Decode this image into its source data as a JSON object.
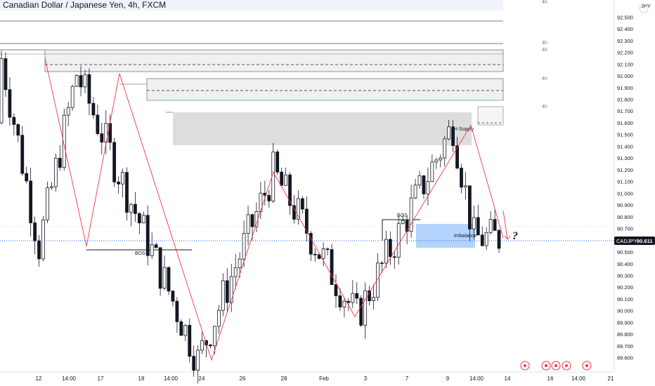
{
  "header": {
    "title": "Canadian Dollar / Japanese Yen, 4h, FXCM",
    "currency": "JPY"
  },
  "price_label": {
    "symbol": "CADJPY",
    "value": "90.611"
  },
  "marker": "?",
  "timeframe_labels": [
    "4h",
    "4h",
    "4h",
    "4h",
    "4h"
  ],
  "colors": {
    "up": "#131722",
    "down": "#131722",
    "zigzag": "#f23645",
    "supply_zone": "#e0e0e0",
    "imbalance": "#b3d4fc",
    "price_line": "#2962ff"
  },
  "annotations": {
    "supply": "4H Supply",
    "imbalance": "Imbalance",
    "bos1": "BOS",
    "bos2": "BOS"
  },
  "chart_data": {
    "type": "candlestick",
    "y_ticks": [
      "92.500",
      "92.400",
      "92.300",
      "92.200",
      "92.100",
      "92.000",
      "91.900",
      "91.800",
      "91.700",
      "91.600",
      "91.500",
      "91.400",
      "91.300",
      "91.200",
      "91.100",
      "91.000",
      "90.900",
      "90.800",
      "90.700",
      "90.600",
      "90.500",
      "90.400",
      "90.300",
      "90.200",
      "90.100",
      "90.000",
      "89.900",
      "89.800",
      "89.700",
      "89.600"
    ],
    "y_range": [
      89.55,
      92.55
    ],
    "x_ticks": [
      "12",
      "14:00",
      "17",
      "19",
      "14:00",
      "24",
      "26",
      "28",
      "Feb",
      "3",
      "7",
      "9",
      "14:00",
      "14",
      "16",
      "14:00",
      "21"
    ],
    "last_price": 90.611,
    "zigzag": [
      {
        "t": 0,
        "p": 92.15
      },
      {
        "t": 9,
        "p": 90.55
      },
      {
        "t": 18,
        "p": 92.02
      },
      {
        "t": 47,
        "p": 89.58
      },
      {
        "t": 65,
        "p": 91.18
      },
      {
        "t": 85,
        "p": 89.95
      },
      {
        "t": 108,
        "p": 91.58
      },
      {
        "t": 113,
        "p": 90.62
      }
    ],
    "zones": [
      {
        "name": "supply-zone-top",
        "from": 92.2,
        "to": 92.05
      },
      {
        "name": "supply-zone-mid",
        "from": 91.95,
        "to": 91.75
      },
      {
        "name": "supply-zone-4h",
        "from": 91.65,
        "to": 91.4
      },
      {
        "name": "imbalance",
        "from": 90.75,
        "to": 90.57
      }
    ]
  }
}
